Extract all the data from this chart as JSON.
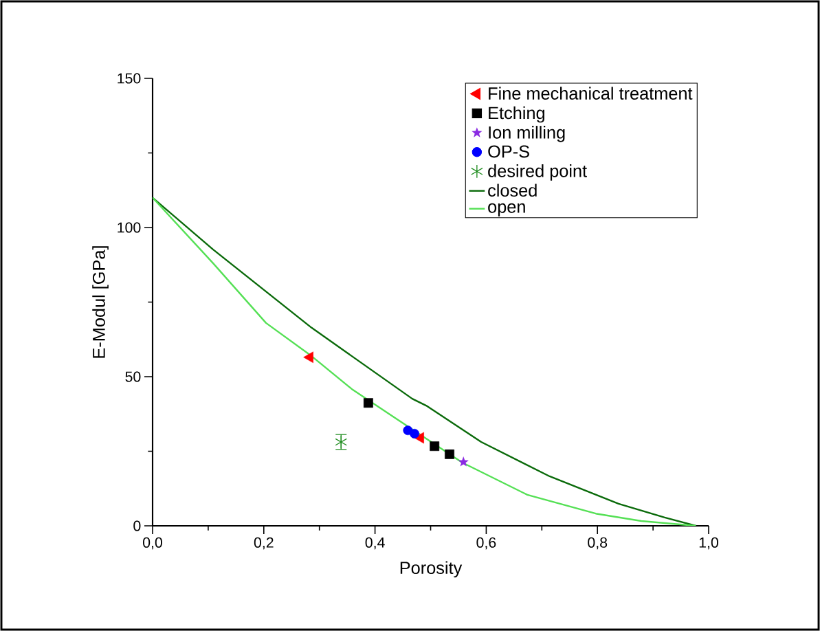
{
  "chart_data": {
    "type": "scatter",
    "xlabel": "Porosity",
    "ylabel": "E-Modul [GPa]",
    "xlim": [
      0,
      1
    ],
    "ylim": [
      0,
      150
    ],
    "xticks": [
      {
        "value": 0,
        "label": "0,0"
      },
      {
        "value": 0.1,
        "label": null
      },
      {
        "value": 0.2,
        "label": "0,2"
      },
      {
        "value": 0.3,
        "label": null
      },
      {
        "value": 0.4,
        "label": "0,4"
      },
      {
        "value": 0.5,
        "label": null
      },
      {
        "value": 0.6,
        "label": "0,6"
      },
      {
        "value": 0.7,
        "label": null
      },
      {
        "value": 0.8,
        "label": "0,8"
      },
      {
        "value": 0.9,
        "label": null
      },
      {
        "value": 1,
        "label": "1,0"
      }
    ],
    "yticks": [
      0,
      {
        "value": 25,
        "label": null
      },
      50,
      {
        "value": 75,
        "label": null
      },
      100,
      {
        "value": 125,
        "label": null
      },
      150
    ],
    "legend": "top right",
    "grid": false,
    "series": [
      {
        "name": "Fine mechanical treatment",
        "color": "#ff0000",
        "marker": "triangle",
        "x": [
          0.283,
          0.482
        ],
        "values": [
          56.5,
          29.5
        ]
      },
      {
        "name": "Etching",
        "color": "#000000",
        "marker": "square",
        "x": [
          0.388,
          0.507,
          0.534
        ],
        "values": [
          41.2,
          26.7,
          24.0
        ]
      },
      {
        "name": "Ion milling",
        "color": "#8a2be2",
        "marker": "star",
        "x": [
          0.559
        ],
        "values": [
          21.4
        ]
      },
      {
        "name": "OP-S",
        "color": "#0000ff",
        "marker": "circle",
        "x": [
          0.459,
          0.471
        ],
        "values": [
          32.0,
          30.9
        ]
      },
      {
        "name": "desired point",
        "color": "#1e8c1e",
        "marker": "cross",
        "x": [
          0.339
        ],
        "values": [
          28.1
        ],
        "errors": [
          2.5
        ]
      },
      {
        "name": "closed",
        "type": "line",
        "color": "#0a6a0a",
        "marker": "none",
        "x": [
          0,
          0.109,
          0.286,
          0.467,
          0.492,
          0.591,
          0.714,
          0.838,
          0.921,
          0.977
        ],
        "values": [
          110,
          92.6,
          66.4,
          42.6,
          40.3,
          28.1,
          16.6,
          7.4,
          2.8,
          0
        ]
      },
      {
        "name": "open",
        "type": "line",
        "color": "#55e055",
        "marker": "none",
        "x": [
          0,
          0.109,
          0.204,
          0.286,
          0.36,
          0.43,
          0.557,
          0.674,
          0.797,
          0.879,
          0.977
        ],
        "values": [
          110,
          88,
          68,
          56.9,
          45.6,
          36.9,
          21.2,
          10.4,
          4.1,
          1.6,
          0
        ]
      }
    ]
  }
}
